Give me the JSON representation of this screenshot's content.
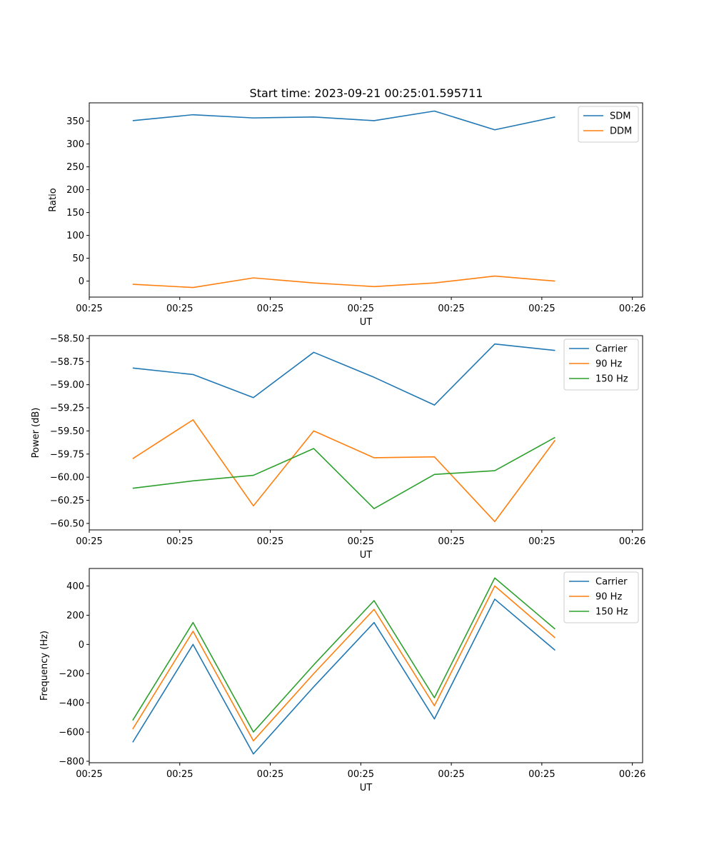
{
  "figure": {
    "title": "Start time: 2023-09-21 00:25:01.595711"
  },
  "chart_data": [
    {
      "type": "line",
      "title": "Start time: 2023-09-21 00:25:01.595711",
      "xlabel": "UT",
      "ylabel": "Ratio",
      "x": [
        0,
        1,
        2,
        3,
        4,
        5,
        6,
        7
      ],
      "xlim": [
        -0.72,
        8.45
      ],
      "xticks": [
        -0.72,
        0.78,
        2.28,
        3.78,
        5.28,
        6.78,
        8.28
      ],
      "xticklabels": [
        "00:25",
        "00:25",
        "00:25",
        "00:25",
        "00:25",
        "00:25",
        "00:26"
      ],
      "ylim": [
        -35,
        390
      ],
      "yticks": [
        0,
        50,
        100,
        150,
        200,
        250,
        300,
        350
      ],
      "yticklabels": [
        "0",
        "50",
        "100",
        "150",
        "200",
        "250",
        "300",
        "350"
      ],
      "legend_position": "top-right",
      "series": [
        {
          "name": "SDM",
          "color": "#1f77b4",
          "values": [
            351,
            364,
            357,
            359,
            351,
            372,
            331,
            359
          ]
        },
        {
          "name": "DDM",
          "color": "#ff7f0e",
          "values": [
            -7,
            -14,
            7,
            -4,
            -12,
            -4,
            11,
            0
          ]
        }
      ]
    },
    {
      "type": "line",
      "title": "",
      "xlabel": "UT",
      "ylabel": "Power (dB)",
      "x": [
        0,
        1,
        2,
        3,
        4,
        5,
        6,
        7
      ],
      "xlim": [
        -0.72,
        8.45
      ],
      "xticks": [
        -0.72,
        0.78,
        2.28,
        3.78,
        5.28,
        6.78,
        8.28
      ],
      "xticklabels": [
        "00:25",
        "00:25",
        "00:25",
        "00:25",
        "00:25",
        "00:25",
        "00:26"
      ],
      "ylim": [
        -60.57,
        -58.47
      ],
      "yticks": [
        -60.5,
        -60.25,
        -60.0,
        -59.75,
        -59.5,
        -59.25,
        -59.0,
        -58.75,
        -58.5
      ],
      "yticklabels": [
        "−60.50",
        "−60.25",
        "−60.00",
        "−59.75",
        "−59.50",
        "−59.25",
        "−59.00",
        "−58.75",
        "−58.50"
      ],
      "legend_position": "top-right",
      "series": [
        {
          "name": "Carrier",
          "color": "#1f77b4",
          "values": [
            -58.82,
            -58.89,
            -59.14,
            -58.65,
            -58.92,
            -59.22,
            -58.56,
            -58.63
          ]
        },
        {
          "name": "90 Hz",
          "color": "#ff7f0e",
          "values": [
            -59.8,
            -59.38,
            -60.31,
            -59.5,
            -59.79,
            -59.78,
            -60.48,
            -59.6
          ]
        },
        {
          "name": "150 Hz",
          "color": "#2ca02c",
          "values": [
            -60.12,
            -60.04,
            -59.98,
            -59.69,
            -60.34,
            -59.97,
            -59.93,
            -59.57
          ]
        }
      ]
    },
    {
      "type": "line",
      "title": "",
      "xlabel": "UT",
      "ylabel": "Frequency (Hz)",
      "x": [
        0,
        1,
        2,
        3,
        4,
        5,
        6,
        7
      ],
      "xlim": [
        -0.72,
        8.45
      ],
      "xticks": [
        -0.72,
        0.78,
        2.28,
        3.78,
        5.28,
        6.78,
        8.28
      ],
      "xticklabels": [
        "00:25",
        "00:25",
        "00:25",
        "00:25",
        "00:25",
        "00:25",
        "00:26"
      ],
      "ylim": [
        -810,
        520
      ],
      "yticks": [
        -800,
        -600,
        -400,
        -200,
        0,
        200,
        400
      ],
      "yticklabels": [
        "−800",
        "−600",
        "−400",
        "−200",
        "0",
        "200",
        "400"
      ],
      "legend_position": "top-right",
      "series": [
        {
          "name": "Carrier",
          "color": "#1f77b4",
          "values": [
            -670,
            0,
            -750,
            -290,
            150,
            -510,
            310,
            -40
          ]
        },
        {
          "name": "90 Hz",
          "color": "#ff7f0e",
          "values": [
            -580,
            90,
            -660,
            -200,
            240,
            -420,
            400,
            45
          ]
        },
        {
          "name": "150 Hz",
          "color": "#2ca02c",
          "values": [
            -520,
            150,
            -600,
            -140,
            300,
            -365,
            455,
            105
          ]
        }
      ]
    }
  ]
}
